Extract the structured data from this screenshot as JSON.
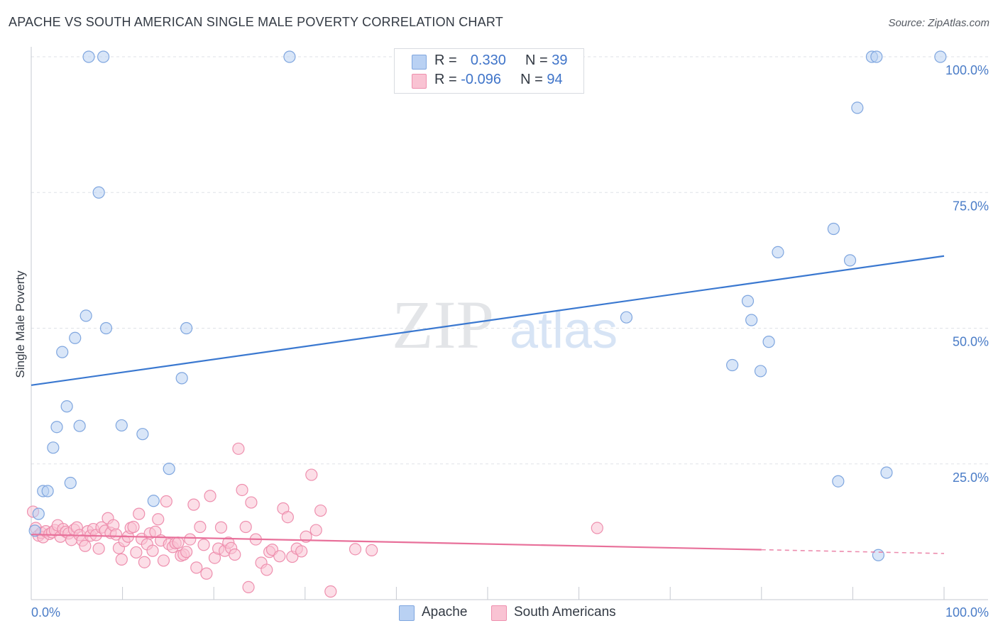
{
  "title": "APACHE VS SOUTH AMERICAN SINGLE MALE POVERTY CORRELATION CHART",
  "source": "Source: ZipAtlas.com",
  "watermark": {
    "zip": "ZIP",
    "atlas": "atlas"
  },
  "colors": {
    "apache_fill": "#b9d1f3",
    "apache_stroke": "#7fa6df",
    "apache_line": "#3a78d0",
    "south_fill": "#f9c3d3",
    "south_stroke": "#ee8fae",
    "south_line": "#e8709a",
    "tick_label": "#4a7cc7",
    "grid": "#dfe2e7"
  },
  "legend": {
    "apache": {
      "r_label": "R = ",
      "r_value": "0.330",
      "n_label": "N = ",
      "n_value": "39"
    },
    "south": {
      "r_label": "R = ",
      "r_value": "-0.096",
      "n_label": "N = ",
      "n_value": "94"
    }
  },
  "bottom_legend": {
    "apache": "Apache",
    "south": "South Americans"
  },
  "chart_data": {
    "type": "scatter",
    "xlabel": "",
    "ylabel": "Single Male Poverty",
    "xlim": [
      0,
      100
    ],
    "ylim": [
      0,
      100
    ],
    "x_tick_labels": [
      "0.0%",
      "100.0%"
    ],
    "y_tick_labels": [
      "100.0%",
      "75.0%",
      "50.0%",
      "25.0%"
    ],
    "y_ticks": [
      100,
      75,
      50,
      25
    ],
    "grid": true,
    "legend_position": "top-center",
    "series": [
      {
        "name": "Apache",
        "trend": {
          "x": [
            0,
            100
          ],
          "y": [
            39.5,
            63.3
          ]
        },
        "points": [
          [
            6.3,
            100
          ],
          [
            7.9,
            100
          ],
          [
            28.3,
            100
          ],
          [
            92.1,
            100
          ],
          [
            92.6,
            100
          ],
          [
            99.6,
            100
          ],
          [
            90.5,
            90.6
          ],
          [
            7.4,
            75
          ],
          [
            87.9,
            68.3
          ],
          [
            81.8,
            64
          ],
          [
            89.7,
            62.5
          ],
          [
            78.5,
            55
          ],
          [
            6,
            52.3
          ],
          [
            65.2,
            52
          ],
          [
            8.2,
            50
          ],
          [
            17,
            50
          ],
          [
            78.9,
            51.5
          ],
          [
            4.8,
            48.2
          ],
          [
            80.8,
            47.5
          ],
          [
            3.4,
            45.6
          ],
          [
            76.8,
            43.2
          ],
          [
            79.9,
            42.1
          ],
          [
            16.5,
            40.8
          ],
          [
            3.9,
            35.6
          ],
          [
            2.8,
            31.8
          ],
          [
            5.3,
            32
          ],
          [
            9.9,
            32.1
          ],
          [
            12.2,
            30.5
          ],
          [
            2.4,
            28
          ],
          [
            15.1,
            24.1
          ],
          [
            93.7,
            23.4
          ],
          [
            4.3,
            21.5
          ],
          [
            88.4,
            21.8
          ],
          [
            1.3,
            20
          ],
          [
            1.8,
            20
          ],
          [
            13.4,
            18.2
          ],
          [
            0.8,
            15.8
          ],
          [
            0.4,
            12.7
          ],
          [
            92.8,
            8.2
          ]
        ]
      },
      {
        "name": "South Americans",
        "trend": {
          "x": [
            0,
            80
          ],
          "y": [
            12,
            9.2
          ]
        },
        "trend_dashed": {
          "x": [
            80,
            100
          ],
          "y": [
            9.2,
            8.5
          ]
        },
        "points": [
          [
            0.2,
            16.2
          ],
          [
            0.5,
            13.2
          ],
          [
            0.8,
            11.8
          ],
          [
            1.1,
            12.3
          ],
          [
            1.3,
            11.5
          ],
          [
            1.6,
            12.6
          ],
          [
            2,
            12.1
          ],
          [
            2.3,
            12.4
          ],
          [
            2.6,
            12.8
          ],
          [
            2.9,
            13.7
          ],
          [
            3.2,
            11.6
          ],
          [
            3.5,
            13
          ],
          [
            3.8,
            12.5
          ],
          [
            4.1,
            12.2
          ],
          [
            4.4,
            11
          ],
          [
            4.7,
            12.9
          ],
          [
            5,
            13.3
          ],
          [
            5.3,
            11.9
          ],
          [
            5.6,
            10.9
          ],
          [
            5.9,
            9.9
          ],
          [
            6.2,
            12.6
          ],
          [
            6.5,
            11.8
          ],
          [
            6.8,
            13
          ],
          [
            7.1,
            11.9
          ],
          [
            7.4,
            9.4
          ],
          [
            7.7,
            13.3
          ],
          [
            8.1,
            12.7
          ],
          [
            8.4,
            15
          ],
          [
            8.7,
            12.3
          ],
          [
            9,
            13.7
          ],
          [
            9.3,
            12
          ],
          [
            9.6,
            9.5
          ],
          [
            9.9,
            7.4
          ],
          [
            10.2,
            10.8
          ],
          [
            10.6,
            11.6
          ],
          [
            10.9,
            13.2
          ],
          [
            11.2,
            13.4
          ],
          [
            11.5,
            8.7
          ],
          [
            11.8,
            15.8
          ],
          [
            12.1,
            11.2
          ],
          [
            12.4,
            6.9
          ],
          [
            12.7,
            10.2
          ],
          [
            13,
            12.2
          ],
          [
            13.3,
            9
          ],
          [
            13.6,
            12.5
          ],
          [
            13.9,
            14.8
          ],
          [
            14.2,
            10.9
          ],
          [
            14.5,
            7.2
          ],
          [
            14.8,
            18.1
          ],
          [
            15.1,
            10.2
          ],
          [
            15.5,
            9.7
          ],
          [
            15.8,
            10.4
          ],
          [
            16.1,
            10.5
          ],
          [
            16.4,
            8.1
          ],
          [
            16.7,
            8.3
          ],
          [
            17,
            8.8
          ],
          [
            17.4,
            11.1
          ],
          [
            17.8,
            17.5
          ],
          [
            18.1,
            5.9
          ],
          [
            18.5,
            13.4
          ],
          [
            18.9,
            10.1
          ],
          [
            19.2,
            4.8
          ],
          [
            19.6,
            19.1
          ],
          [
            20.1,
            7.7
          ],
          [
            20.5,
            9.4
          ],
          [
            20.8,
            13.3
          ],
          [
            21.2,
            9
          ],
          [
            21.6,
            10.5
          ],
          [
            21.9,
            9.5
          ],
          [
            22.3,
            8.3
          ],
          [
            22.7,
            27.8
          ],
          [
            23.1,
            20.2
          ],
          [
            23.5,
            13.4
          ],
          [
            24.1,
            17.9
          ],
          [
            24.6,
            11.1
          ],
          [
            25.2,
            6.8
          ],
          [
            25.8,
            5.5
          ],
          [
            26.1,
            8.8
          ],
          [
            26.4,
            9.2
          ],
          [
            27.2,
            8
          ],
          [
            27.6,
            16.8
          ],
          [
            28.1,
            15.2
          ],
          [
            28.6,
            7.9
          ],
          [
            29.1,
            9.4
          ],
          [
            29.6,
            8.9
          ],
          [
            30.1,
            11.6
          ],
          [
            30.7,
            23
          ],
          [
            31.2,
            12.8
          ],
          [
            31.7,
            16.4
          ],
          [
            23.8,
            2.3
          ],
          [
            32.8,
            1.5
          ],
          [
            35.5,
            9.3
          ],
          [
            37.3,
            9.1
          ],
          [
            62,
            13.2
          ]
        ]
      }
    ]
  }
}
